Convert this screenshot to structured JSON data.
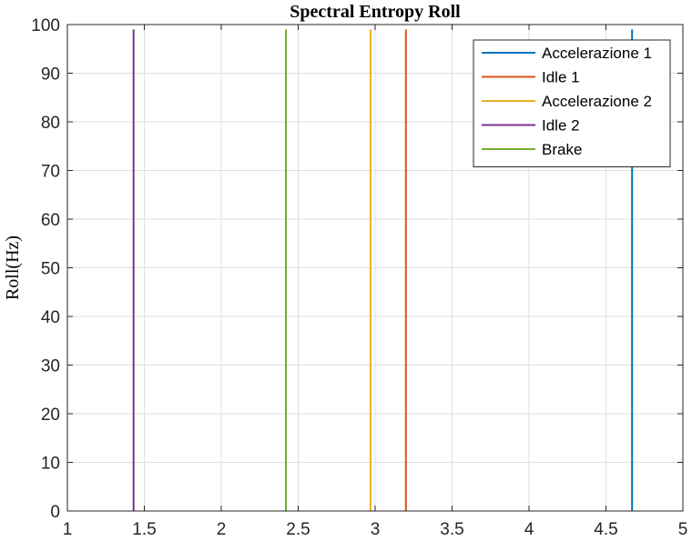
{
  "chart_data": {
    "type": "line",
    "title": "Spectral Entropy Roll",
    "xlabel": "",
    "ylabel": "Roll(Hz)",
    "xlim": [
      1,
      5
    ],
    "ylim": [
      0,
      100
    ],
    "xticks": [
      1,
      1.5,
      2,
      2.5,
      3,
      3.5,
      4,
      4.5,
      5
    ],
    "yticks": [
      0,
      10,
      20,
      30,
      40,
      50,
      60,
      70,
      80,
      90,
      100
    ],
    "xtick_labels": [
      "1",
      "1.5",
      "2",
      "2.5",
      "3",
      "3.5",
      "4",
      "4.5",
      "5"
    ],
    "ytick_labels": [
      "0",
      "10",
      "20",
      "30",
      "40",
      "50",
      "60",
      "70",
      "80",
      "90",
      "100"
    ],
    "grid": true,
    "legend_position": "top-right",
    "series": [
      {
        "name": "Accelerazione 1",
        "color": "#0072BD",
        "x": [
          4.67,
          4.67
        ],
        "y": [
          0,
          99
        ]
      },
      {
        "name": "Idle 1",
        "color": "#D95319",
        "x": [
          3.2,
          3.2
        ],
        "y": [
          0,
          99
        ]
      },
      {
        "name": "Accelerazione 2",
        "color": "#EDB120",
        "x": [
          2.97,
          2.97
        ],
        "y": [
          0,
          99
        ]
      },
      {
        "name": "Idle 2",
        "color": "#7E2F8E",
        "x": [
          1.43,
          1.43
        ],
        "y": [
          0,
          99
        ]
      },
      {
        "name": "Brake",
        "color": "#77AC30",
        "x": [
          2.42,
          2.42
        ],
        "y": [
          0,
          99
        ]
      }
    ]
  }
}
